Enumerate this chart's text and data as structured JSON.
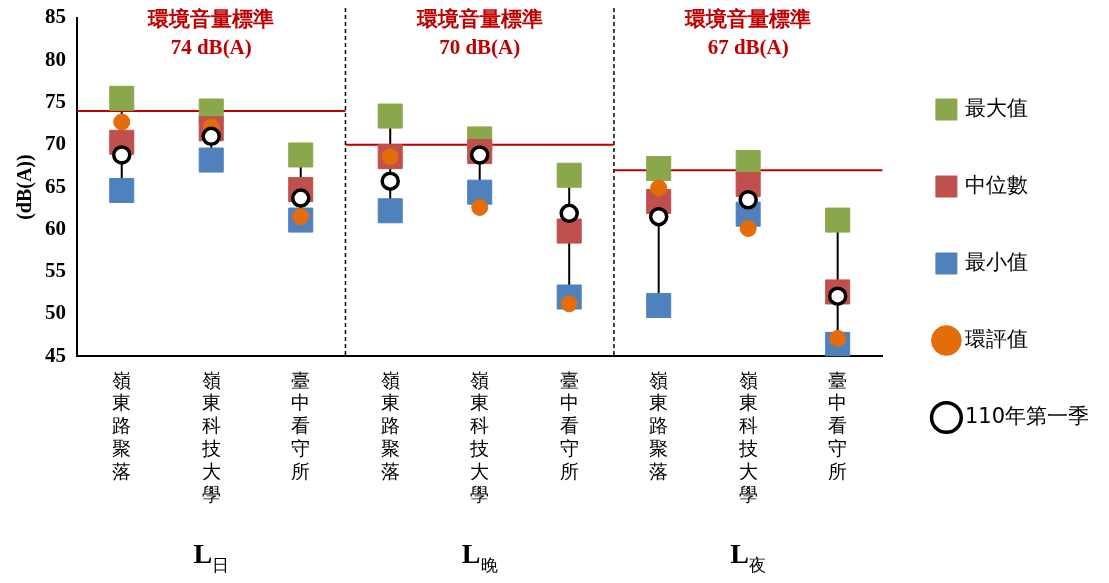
{
  "chart_data": {
    "type": "scatter",
    "ylabel": "(dB(A))",
    "categories": [
      "嶺東路聚落",
      "嶺東科技大學",
      "臺中看守所",
      "嶺東路聚落",
      "嶺東科技大學",
      "臺中看守所",
      "嶺東路聚落",
      "嶺東科技大學",
      "臺中看守所"
    ],
    "series": [
      {
        "name": "最大值",
        "color": "#8aa84b",
        "marker": "square",
        "values": [
          75.5,
          74.0,
          68.8,
          73.4,
          70.7,
          66.4,
          67.2,
          67.9,
          61.1
        ]
      },
      {
        "name": "中位數",
        "color": "#c0504d",
        "marker": "square",
        "values": [
          70.3,
          71.9,
          64.7,
          68.6,
          69.2,
          59.8,
          63.3,
          65.3,
          52.6
        ]
      },
      {
        "name": "最小值",
        "color": "#4f81bd",
        "marker": "square",
        "values": [
          64.6,
          68.2,
          61.1,
          62.2,
          64.4,
          52.0,
          51.0,
          61.8,
          46.4
        ]
      },
      {
        "name": "環評值",
        "color": "#e46c0a",
        "marker": "circle",
        "values": [
          72.7,
          72.1,
          61.5,
          68.6,
          62.6,
          51.2,
          64.9,
          60.1,
          47.1
        ]
      },
      {
        "name": "110年第一季",
        "color": "#000000",
        "marker": "circle",
        "values": [
          68.8,
          71.0,
          63.7,
          65.7,
          68.8,
          61.9,
          61.5,
          63.5,
          52.1
        ]
      }
    ],
    "ylim": [
      45,
      85
    ],
    "yticks": [
      45,
      50,
      55,
      60,
      65,
      70,
      75,
      80,
      85
    ],
    "grid": false,
    "legend": "right",
    "ref_lines": [
      {
        "axis": "y",
        "value": 74,
        "label": "環境音量標準\n74 dB(A)",
        "color": "#c00000"
      },
      {
        "axis": "y",
        "value": 70,
        "label": "環境音量標準\n70 dB(A)",
        "color": "#c00000"
      },
      {
        "axis": "y",
        "value": 67,
        "label": "環境音量標準\n67 dB(A)",
        "color": "#c00000"
      }
    ],
    "annotations": [
      "L$_{日}$",
      "L$_{晚}$",
      "L$_{夜}$"
    ]
  }
}
